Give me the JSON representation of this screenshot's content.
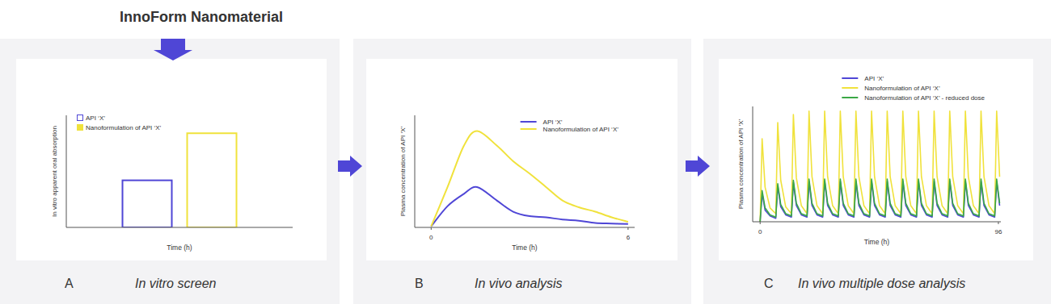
{
  "header": {
    "title": "InnoForm Nanomaterial"
  },
  "panels": [
    {
      "letter": "A",
      "caption": "In vitro screen"
    },
    {
      "letter": "B",
      "caption": "In vivo analysis"
    },
    {
      "letter": "C",
      "caption": "In vivo multiple dose analysis"
    }
  ],
  "chart_data": [
    {
      "type": "bar",
      "xlabel": "Time (h)",
      "ylabel": "In vitro apparent oral absorption",
      "categories": [
        null
      ],
      "series": [
        {
          "name": "API ‘X’",
          "color": "#4f46d6",
          "values": [
            0.42
          ]
        },
        {
          "name": "Nanoformulation of API ‘X’",
          "color": "#f0e23c",
          "values": [
            0.84
          ]
        }
      ],
      "ylim": [
        0,
        1
      ],
      "tick_labels": false,
      "legend": "upper left"
    },
    {
      "type": "line",
      "xlabel": "Time (h)",
      "ylabel": "Plasma concentration of API ‘X’",
      "x": [
        0,
        0.5,
        1,
        1.4,
        2,
        2.5,
        3,
        3.5,
        4,
        4.5,
        5,
        5.5,
        6
      ],
      "series": [
        {
          "name": "API ‘X’",
          "color": "#4f46d6",
          "values": [
            0.01,
            0.19,
            0.3,
            0.36,
            0.24,
            0.14,
            0.1,
            0.09,
            0.07,
            0.06,
            0.04,
            0.035,
            0.03
          ]
        },
        {
          "name": "Nanoformulation of API ‘X’",
          "color": "#f0e23c",
          "values": [
            0.01,
            0.36,
            0.73,
            0.86,
            0.73,
            0.59,
            0.48,
            0.36,
            0.24,
            0.18,
            0.14,
            0.09,
            0.05
          ]
        }
      ],
      "xlim": [
        -0.5,
        6.2
      ],
      "xticks": [
        0,
        6
      ],
      "ylim": [
        0,
        1
      ],
      "tick_labels": "x",
      "legend": "upper right"
    },
    {
      "type": "line",
      "xlabel": "Time (h)",
      "ylabel": "Plasma concentration of API ‘X’",
      "x": [
        0,
        0.8,
        2,
        4,
        6.3,
        7.1,
        8.3,
        10.3,
        12.6,
        13.4,
        14.6,
        16.6,
        18.9,
        19.7,
        20.9,
        22.9,
        25.2,
        26,
        27.2,
        29.2,
        31.5,
        32.3,
        33.5,
        35.5,
        37.8,
        38.6,
        39.8,
        41.8,
        44.1,
        44.9,
        46.1,
        48.1,
        50.4,
        51.2,
        52.4,
        54.4,
        56.7,
        57.5,
        58.7,
        60.7,
        63,
        63.8,
        65,
        67,
        69.3,
        70.1,
        71.3,
        73.3,
        75.6,
        76.4,
        77.6,
        79.6,
        81.9,
        82.7,
        83.9,
        85.9,
        88.2,
        89,
        90.2,
        92.2,
        94.5,
        95.3,
        96.5
      ],
      "series": [
        {
          "name": "API ‘X’",
          "color": "#4f46d6",
          "values": [
            0,
            0.25,
            0.1,
            0.05,
            0.03,
            0.31,
            0.13,
            0.06,
            0.04,
            0.34,
            0.14,
            0.06,
            0.04,
            0.35,
            0.14,
            0.06,
            0.04,
            0.35,
            0.14,
            0.06,
            0.04,
            0.35,
            0.14,
            0.06,
            0.04,
            0.35,
            0.14,
            0.06,
            0.04,
            0.35,
            0.14,
            0.06,
            0.04,
            0.35,
            0.14,
            0.06,
            0.04,
            0.35,
            0.14,
            0.06,
            0.04,
            0.35,
            0.14,
            0.06,
            0.04,
            0.35,
            0.14,
            0.06,
            0.04,
            0.35,
            0.14,
            0.06,
            0.04,
            0.35,
            0.14,
            0.06,
            0.04,
            0.35,
            0.14,
            0.06,
            0.04,
            0.35,
            0.14
          ]
        },
        {
          "name": "Nanoformulation of API ‘X’",
          "color": "#f0e23c",
          "values": [
            0,
            0.72,
            0.3,
            0.12,
            0.07,
            0.86,
            0.36,
            0.13,
            0.07,
            0.93,
            0.38,
            0.14,
            0.07,
            0.96,
            0.39,
            0.14,
            0.07,
            0.96,
            0.39,
            0.14,
            0.07,
            0.96,
            0.39,
            0.14,
            0.07,
            0.96,
            0.39,
            0.14,
            0.07,
            0.96,
            0.39,
            0.14,
            0.07,
            0.96,
            0.39,
            0.14,
            0.07,
            0.96,
            0.39,
            0.14,
            0.07,
            0.96,
            0.39,
            0.14,
            0.07,
            0.96,
            0.39,
            0.14,
            0.07,
            0.96,
            0.39,
            0.14,
            0.07,
            0.96,
            0.39,
            0.14,
            0.07,
            0.96,
            0.39,
            0.14,
            0.07,
            0.96,
            0.39
          ]
        },
        {
          "name": "Nanoformulation of API ‘X’ - reduced dose",
          "color": "#3aa845",
          "values": [
            0,
            0.27,
            0.12,
            0.06,
            0.04,
            0.33,
            0.15,
            0.07,
            0.05,
            0.36,
            0.16,
            0.07,
            0.05,
            0.37,
            0.16,
            0.07,
            0.05,
            0.37,
            0.16,
            0.07,
            0.05,
            0.37,
            0.16,
            0.07,
            0.05,
            0.37,
            0.16,
            0.07,
            0.05,
            0.37,
            0.16,
            0.07,
            0.05,
            0.37,
            0.16,
            0.07,
            0.05,
            0.37,
            0.16,
            0.07,
            0.05,
            0.37,
            0.16,
            0.07,
            0.05,
            0.37,
            0.16,
            0.07,
            0.05,
            0.37,
            0.16,
            0.07,
            0.05,
            0.37,
            0.16,
            0.07,
            0.05,
            0.37,
            0.16,
            0.07,
            0.05,
            0.37,
            0.16
          ]
        }
      ],
      "xlim": [
        -3,
        97
      ],
      "xticks": [
        0,
        96
      ],
      "ylim": [
        0,
        1
      ],
      "tick_labels": "x",
      "legend": "upper right"
    }
  ]
}
